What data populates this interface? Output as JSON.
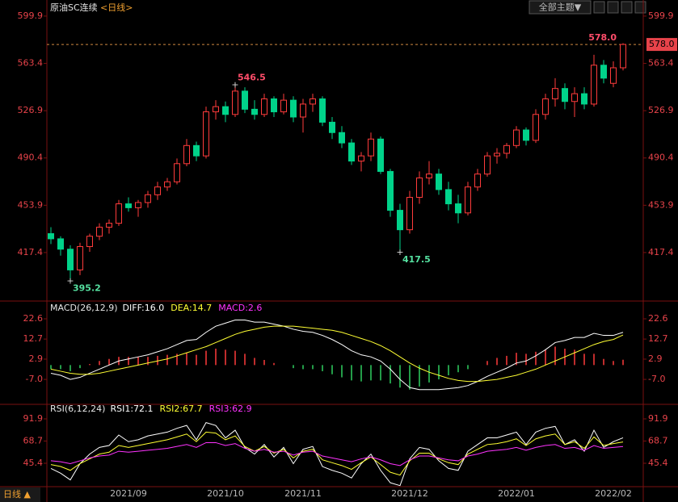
{
  "header": {
    "title": "原油SC连续",
    "period": "<日线>",
    "theme_button": "全部主题▼",
    "footer": "日线 ▲"
  },
  "chart_data": [
    {
      "type": "candlestick",
      "ylim": [
        380.6,
        601.1
      ],
      "yticks": [
        599.9,
        563.4,
        526.9,
        490.4,
        453.9,
        417.4
      ],
      "up_color": "#ff3b3b",
      "down_color": "#00d38a",
      "candles": [
        [
          432,
          437,
          424,
          428
        ],
        [
          428,
          430,
          415,
          420
        ],
        [
          420,
          423,
          395.2,
          404
        ],
        [
          404,
          425,
          400,
          422
        ],
        [
          422,
          432,
          418,
          430
        ],
        [
          430,
          440,
          427,
          437
        ],
        [
          437,
          443,
          432,
          440
        ],
        [
          440,
          458,
          438,
          455
        ],
        [
          455,
          460,
          449,
          452
        ],
        [
          452,
          458,
          445,
          456
        ],
        [
          456,
          465,
          452,
          462
        ],
        [
          462,
          472,
          458,
          468
        ],
        [
          468,
          475,
          465,
          472
        ],
        [
          472,
          490,
          470,
          486
        ],
        [
          486,
          505,
          484,
          500
        ],
        [
          500,
          503,
          488,
          492
        ],
        [
          492,
          530,
          490,
          526
        ],
        [
          526,
          535,
          520,
          530
        ],
        [
          530,
          534,
          518,
          524
        ],
        [
          524,
          546.5,
          522,
          542
        ],
        [
          542,
          545,
          525,
          528
        ],
        [
          528,
          535,
          520,
          524
        ],
        [
          524,
          540,
          522,
          536
        ],
        [
          536,
          538,
          522,
          526
        ],
        [
          526,
          540,
          524,
          535
        ],
        [
          535,
          538,
          518,
          522
        ],
        [
          522,
          536,
          510,
          532
        ],
        [
          532,
          540,
          526,
          536
        ],
        [
          536,
          538,
          515,
          518
        ],
        [
          518,
          522,
          505,
          510
        ],
        [
          510,
          515,
          498,
          502
        ],
        [
          502,
          505,
          485,
          488
        ],
        [
          488,
          495,
          480,
          492
        ],
        [
          492,
          510,
          488,
          505
        ],
        [
          505,
          507,
          478,
          480
        ],
        [
          480,
          482,
          445,
          450
        ],
        [
          450,
          455,
          417.5,
          435
        ],
        [
          435,
          465,
          432,
          460
        ],
        [
          460,
          480,
          455,
          475
        ],
        [
          475,
          488,
          470,
          478
        ],
        [
          478,
          482,
          462,
          466
        ],
        [
          466,
          472,
          450,
          455
        ],
        [
          455,
          462,
          440,
          448
        ],
        [
          448,
          472,
          446,
          468
        ],
        [
          468,
          482,
          465,
          478
        ],
        [
          478,
          495,
          476,
          492
        ],
        [
          492,
          498,
          486,
          494
        ],
        [
          494,
          502,
          490,
          500
        ],
        [
          500,
          515,
          498,
          512
        ],
        [
          512,
          514,
          500,
          504
        ],
        [
          504,
          528,
          502,
          524
        ],
        [
          524,
          540,
          520,
          536
        ],
        [
          536,
          552,
          530,
          544
        ],
        [
          544,
          548,
          528,
          534
        ],
        [
          534,
          545,
          522,
          540
        ],
        [
          540,
          545,
          528,
          532
        ],
        [
          532,
          570,
          530,
          562
        ],
        [
          562,
          566,
          548,
          552
        ],
        [
          548,
          565,
          545,
          560
        ],
        [
          560,
          579,
          558,
          578
        ]
      ],
      "annotations": [
        {
          "index": 19,
          "value": 546.5,
          "color": "#ff4d6a",
          "side": "top"
        },
        {
          "index": 2,
          "value": 395.2,
          "color": "#55e0a0",
          "side": "bottom"
        },
        {
          "index": 36,
          "value": 417.5,
          "color": "#55e0a0",
          "side": "bottom"
        }
      ],
      "last_price": {
        "value": 578,
        "label": "578.0",
        "color": "#ff4d6a"
      }
    },
    {
      "type": "macd",
      "title": "MACD(26,12,9)",
      "ylim": [
        -18.8,
        30.1
      ],
      "yticks": [
        22.6,
        12.7,
        2.9,
        {
          "value": -7,
          "label": "-7.0"
        }
      ],
      "series": [
        {
          "name": "DIFF",
          "label": "DIFF:16.0",
          "color": "#ffffff",
          "values": [
            -4,
            -5,
            -7,
            -6,
            -4,
            -2,
            0,
            2,
            3,
            4,
            5,
            6.5,
            8,
            10,
            12,
            12.5,
            16,
            19,
            20.5,
            22,
            22,
            21,
            21,
            20,
            19,
            17.5,
            16.5,
            16,
            14.5,
            12.5,
            10,
            7,
            5,
            4,
            2,
            -2,
            -7,
            -11,
            -12,
            -12,
            -12,
            -11.5,
            -11,
            -10,
            -8,
            -5.5,
            -3.5,
            -1.5,
            1,
            2,
            4.5,
            7.5,
            11,
            12,
            13.5,
            13.5,
            15.5,
            14.5,
            14.5,
            16.0
          ]
        },
        {
          "name": "DEA",
          "label": "DEA:14.7",
          "color": "#ffff33",
          "values": [
            -2,
            -3,
            -4,
            -4.5,
            -4.5,
            -4,
            -3,
            -2,
            -1,
            0,
            1,
            2,
            3,
            4.5,
            6,
            7.5,
            9,
            11,
            13,
            15,
            16.5,
            17.5,
            18.5,
            19,
            19,
            19,
            18.5,
            18,
            17.5,
            17,
            16,
            14.5,
            13,
            11.5,
            9.5,
            7,
            4,
            1,
            -1.5,
            -3.5,
            -5,
            -6.5,
            -7.5,
            -8,
            -8,
            -7.5,
            -7,
            -6,
            -5,
            -3.5,
            -2,
            0,
            2,
            4,
            6,
            8,
            10,
            11.5,
            12.5,
            14.7
          ]
        },
        {
          "name": "MACD",
          "label": "MACD:2.6",
          "color": "#ff33ff",
          "kind": "histogram",
          "up_color": "#ff3b3b",
          "down_color": "#2fd060",
          "values": [
            -2,
            -2,
            -3,
            -1.5,
            0.5,
            2,
            3,
            4,
            4,
            4,
            4,
            4.5,
            5,
            5.5,
            6,
            5,
            7,
            8,
            7.5,
            7,
            5.5,
            3.5,
            2.5,
            1,
            0,
            -1.5,
            -2,
            -2,
            -3,
            -4.5,
            -6,
            -7.5,
            -8,
            -7.5,
            -7.5,
            -9,
            -11,
            -12,
            -10.5,
            -8.5,
            -7,
            -5,
            -3.5,
            -2,
            0,
            2,
            3.5,
            4.5,
            6,
            5.5,
            6.5,
            7.5,
            9,
            8,
            7.5,
            5.5,
            5.5,
            3,
            2,
            2.6
          ]
        }
      ]
    },
    {
      "type": "rsi",
      "title": "RSI(6,12,24)",
      "ylim": [
        20.9,
        105.4
      ],
      "yticks": [
        91.9,
        68.7,
        45.4
      ],
      "categories": [
        null,
        null,
        null,
        null,
        null,
        null,
        null,
        null,
        "2021/09",
        null,
        null,
        null,
        null,
        null,
        null,
        null,
        null,
        null,
        "2021/10",
        null,
        null,
        null,
        null,
        null,
        null,
        null,
        "2021/11",
        null,
        null,
        null,
        null,
        null,
        null,
        null,
        null,
        null,
        null,
        "2021/12",
        null,
        null,
        null,
        null,
        null,
        null,
        null,
        null,
        null,
        null,
        "2022/01",
        null,
        null,
        null,
        null,
        null,
        null,
        null,
        null,
        null,
        "2022/02",
        null
      ],
      "series": [
        {
          "name": "RSI1",
          "label": "RSI1:72.1",
          "color": "#ffffff",
          "values": [
            40,
            35,
            28,
            45,
            55,
            62,
            64,
            75,
            68,
            70,
            74,
            76,
            78,
            82,
            85,
            70,
            88,
            85,
            72,
            80,
            62,
            55,
            65,
            52,
            62,
            45,
            60,
            63,
            42,
            38,
            35,
            30,
            45,
            55,
            38,
            25,
            22,
            50,
            62,
            60,
            48,
            40,
            38,
            58,
            65,
            72,
            72,
            75,
            78,
            65,
            78,
            82,
            84,
            65,
            70,
            58,
            80,
            62,
            68,
            72.1
          ]
        },
        {
          "name": "RSI2",
          "label": "RSI2:67.7",
          "color": "#ffff33",
          "values": [
            44,
            42,
            38,
            45,
            50,
            55,
            57,
            64,
            62,
            64,
            66,
            68,
            70,
            73,
            76,
            68,
            78,
            77,
            70,
            74,
            63,
            58,
            63,
            56,
            60,
            51,
            58,
            60,
            49,
            46,
            43,
            39,
            46,
            52,
            44,
            36,
            33,
            48,
            56,
            56,
            50,
            46,
            44,
            55,
            60,
            65,
            66,
            68,
            71,
            64,
            71,
            74,
            76,
            65,
            68,
            61,
            73,
            64,
            66,
            67.7
          ]
        },
        {
          "name": "RSI3",
          "label": "RSI3:62.9",
          "color": "#ff33ff",
          "values": [
            48,
            47,
            45,
            48,
            51,
            53,
            54,
            58,
            57,
            58,
            59,
            60,
            61,
            63,
            65,
            62,
            67,
            67,
            64,
            66,
            61,
            58,
            60,
            57,
            58,
            54,
            57,
            58,
            53,
            51,
            49,
            47,
            50,
            52,
            49,
            45,
            43,
            49,
            53,
            53,
            51,
            49,
            48,
            53,
            55,
            58,
            59,
            60,
            62,
            59,
            62,
            64,
            65,
            61,
            62,
            59,
            64,
            61,
            62,
            62.9
          ]
        }
      ]
    }
  ]
}
